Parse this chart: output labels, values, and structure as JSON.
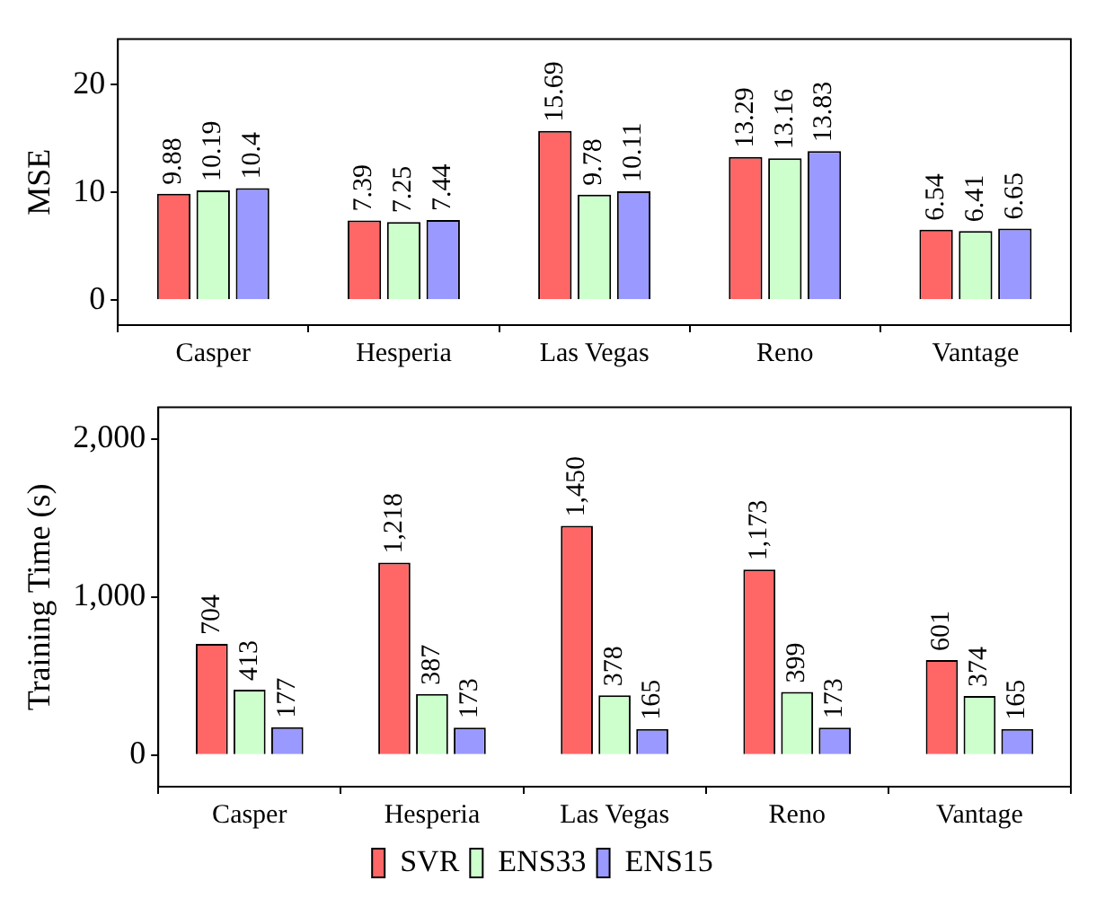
{
  "chart_data": [
    {
      "type": "bar",
      "ylabel": "MSE",
      "categories": [
        "Casper",
        "Hesperia",
        "Las Vegas",
        "Reno",
        "Vantage"
      ],
      "ylim": [
        -2.3,
        24.2
      ],
      "yticks": [
        0,
        10,
        20
      ],
      "grid": false,
      "legend": false,
      "data_labels": true,
      "series": [
        {
          "color": "#ff6666",
          "values": [
            9.88,
            7.39,
            15.69,
            13.29,
            6.54
          ]
        },
        {
          "color": "#ccffcc",
          "values": [
            10.19,
            7.25,
            9.78,
            13.16,
            6.41
          ]
        },
        {
          "color": "#9999ff",
          "values": [
            10.4,
            7.44,
            10.11,
            13.83,
            6.65
          ]
        }
      ]
    },
    {
      "type": "bar",
      "ylabel": "Training Time (s)",
      "categories": [
        "Casper",
        "Hesperia",
        "Las Vegas",
        "Reno",
        "Vantage"
      ],
      "ylim": [
        -200,
        2200
      ],
      "yticks": [
        0,
        {
          "value": 1000,
          "label": "1,000"
        },
        {
          "value": 2000,
          "label": "2,000"
        }
      ],
      "grid": false,
      "legend": "bottom",
      "series": [
        {
          "name": "SVR",
          "color": "#ff6666",
          "values": [
            704,
            1218,
            1450,
            1173,
            601
          ],
          "value_labels": [
            "704",
            "1,218",
            "1,450",
            "1,173",
            "601"
          ]
        },
        {
          "name": "ENS33",
          "color": "#ccffcc",
          "values": [
            413,
            387,
            378,
            399,
            374
          ],
          "value_labels": [
            "413",
            "387",
            "378",
            "399",
            "374"
          ]
        },
        {
          "name": "ENS15",
          "color": "#9999ff",
          "values": [
            177,
            173,
            165,
            173,
            165
          ],
          "value_labels": [
            "177",
            "173",
            "165",
            "173",
            "165"
          ]
        }
      ]
    }
  ]
}
